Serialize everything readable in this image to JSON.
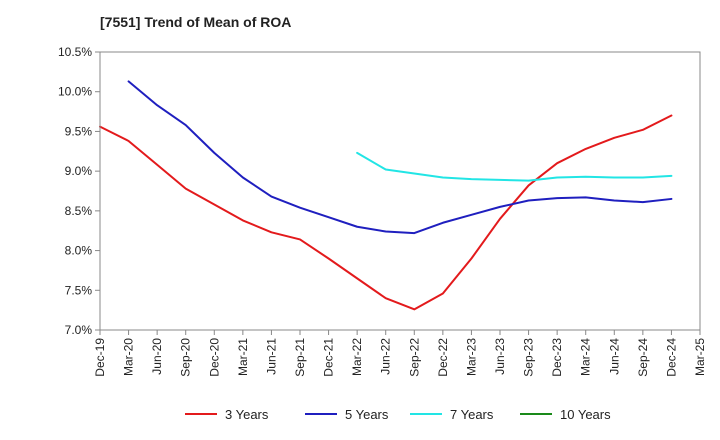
{
  "chart_data": {
    "type": "line",
    "title": "[7551]  Trend of Mean of ROA",
    "xlabel": "",
    "ylabel": "",
    "ylim": [
      7.0,
      10.5
    ],
    "yticks": [
      "7.0%",
      "7.5%",
      "8.0%",
      "8.5%",
      "9.0%",
      "9.5%",
      "10.0%",
      "10.5%"
    ],
    "ytick_values": [
      7.0,
      7.5,
      8.0,
      8.5,
      9.0,
      9.5,
      10.0,
      10.5
    ],
    "categories": [
      "Dec-19",
      "Mar-20",
      "Jun-20",
      "Sep-20",
      "Dec-20",
      "Mar-21",
      "Jun-21",
      "Sep-21",
      "Dec-21",
      "Mar-22",
      "Jun-22",
      "Sep-22",
      "Dec-22",
      "Mar-23",
      "Jun-23",
      "Sep-23",
      "Dec-23",
      "Mar-24",
      "Jun-24",
      "Sep-24",
      "Dec-24",
      "Mar-25"
    ],
    "grid": false,
    "legend_position": "bottom",
    "series": [
      {
        "name": "3 Years",
        "color": "#e31a1c",
        "values": [
          9.56,
          9.38,
          9.08,
          8.78,
          8.58,
          8.38,
          8.23,
          8.14,
          7.9,
          7.65,
          7.4,
          7.26,
          7.46,
          7.9,
          8.4,
          8.82,
          9.1,
          9.28,
          9.42,
          9.52,
          9.7,
          null
        ]
      },
      {
        "name": "5 Years",
        "color": "#1f1fbf",
        "values": [
          null,
          10.13,
          9.83,
          9.58,
          9.23,
          8.92,
          8.68,
          8.54,
          8.42,
          8.3,
          8.24,
          8.22,
          8.35,
          8.45,
          8.55,
          8.63,
          8.66,
          8.67,
          8.63,
          8.61,
          8.65,
          null
        ]
      },
      {
        "name": "7 Years",
        "color": "#22e5e5",
        "values": [
          null,
          null,
          null,
          null,
          null,
          null,
          null,
          null,
          null,
          9.23,
          9.02,
          8.97,
          8.92,
          8.9,
          8.89,
          8.88,
          8.92,
          8.93,
          8.92,
          8.92,
          8.94,
          null
        ]
      },
      {
        "name": "10 Years",
        "color": "#1a8a1a",
        "values": [
          null,
          null,
          null,
          null,
          null,
          null,
          null,
          null,
          null,
          null,
          null,
          null,
          null,
          null,
          null,
          null,
          null,
          null,
          null,
          null,
          null,
          null
        ]
      }
    ]
  }
}
